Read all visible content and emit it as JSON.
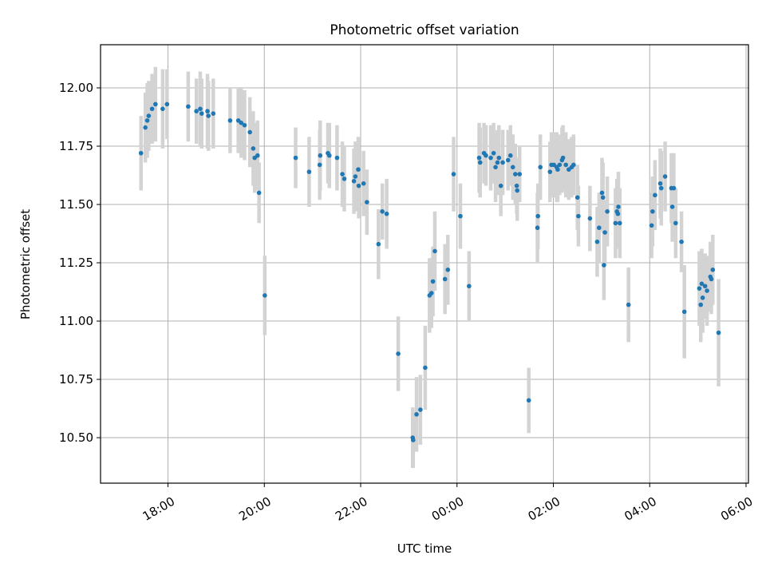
{
  "chart_data": {
    "type": "scatter",
    "title": "Photometric offset variation",
    "xlabel": "UTC time",
    "ylabel": "Photometric offset",
    "x_unit": "hours since 00:00 UTC on the first day (values past 24 are the next day)",
    "xlim": [
      16.6,
      30.05
    ],
    "ylim": [
      10.305,
      12.185
    ],
    "x_ticks": [
      {
        "value": 18,
        "label": "18:00"
      },
      {
        "value": 20,
        "label": "20:00"
      },
      {
        "value": 22,
        "label": "22:00"
      },
      {
        "value": 24,
        "label": "00:00"
      },
      {
        "value": 26,
        "label": "02:00"
      },
      {
        "value": 28,
        "label": "04:00"
      },
      {
        "value": 30,
        "label": "06:00"
      }
    ],
    "y_ticks": [
      {
        "value": 10.5,
        "label": "10.50"
      },
      {
        "value": 10.75,
        "label": "10.75"
      },
      {
        "value": 11.0,
        "label": "11.00"
      },
      {
        "value": 11.25,
        "label": "11.25"
      },
      {
        "value": 11.5,
        "label": "11.50"
      },
      {
        "value": 11.75,
        "label": "11.75"
      },
      {
        "value": 12.0,
        "label": "12.00"
      }
    ],
    "grid": true,
    "marker_color": "#1f77b4",
    "errorbar_color": "#d3d3d3",
    "series": [
      {
        "points": [
          [
            17.44,
            11.72,
            0.16
          ],
          [
            17.53,
            11.83,
            0.15
          ],
          [
            17.57,
            11.86,
            0.16
          ],
          [
            17.6,
            11.88,
            0.15
          ],
          [
            17.67,
            11.91,
            0.15
          ],
          [
            17.74,
            11.93,
            0.16
          ],
          [
            17.89,
            11.91,
            0.17
          ],
          [
            17.98,
            11.93,
            0.15
          ],
          [
            18.42,
            11.92,
            0.15
          ],
          [
            18.59,
            11.9,
            0.14
          ],
          [
            18.67,
            11.91,
            0.16
          ],
          [
            18.7,
            11.89,
            0.15
          ],
          [
            18.82,
            11.9,
            0.16
          ],
          [
            18.84,
            11.88,
            0.15
          ],
          [
            18.94,
            11.89,
            0.15
          ],
          [
            19.29,
            11.86,
            0.14
          ],
          [
            19.46,
            11.86,
            0.14
          ],
          [
            19.52,
            11.85,
            0.15
          ],
          [
            19.59,
            11.84,
            0.15
          ],
          [
            19.7,
            11.81,
            0.15
          ],
          [
            19.77,
            11.74,
            0.16
          ],
          [
            19.8,
            11.7,
            0.15
          ],
          [
            19.86,
            11.71,
            0.15
          ],
          [
            19.89,
            11.55,
            0.13
          ],
          [
            20.01,
            11.11,
            0.17
          ],
          [
            20.65,
            11.7,
            0.13
          ],
          [
            20.93,
            11.64,
            0.15
          ],
          [
            21.15,
            11.67,
            0.15
          ],
          [
            21.16,
            11.71,
            0.15
          ],
          [
            21.32,
            11.72,
            0.13
          ],
          [
            21.35,
            11.71,
            0.14
          ],
          [
            21.51,
            11.7,
            0.14
          ],
          [
            21.62,
            11.63,
            0.14
          ],
          [
            21.66,
            11.61,
            0.14
          ],
          [
            21.86,
            11.6,
            0.14
          ],
          [
            21.89,
            11.62,
            0.15
          ],
          [
            21.95,
            11.65,
            0.14
          ],
          [
            21.96,
            11.58,
            0.14
          ],
          [
            22.06,
            11.59,
            0.14
          ],
          [
            22.13,
            11.51,
            0.14
          ],
          [
            22.37,
            11.33,
            0.15
          ],
          [
            22.45,
            11.47,
            0.12
          ],
          [
            22.54,
            11.46,
            0.15
          ],
          [
            22.78,
            10.86,
            0.16
          ],
          [
            23.08,
            10.5,
            0.13
          ],
          [
            23.09,
            10.49,
            0.12
          ],
          [
            23.16,
            10.6,
            0.16
          ],
          [
            23.24,
            10.62,
            0.15
          ],
          [
            23.34,
            10.8,
            0.18
          ],
          [
            23.43,
            11.11,
            0.16
          ],
          [
            23.47,
            11.12,
            0.15
          ],
          [
            23.5,
            11.17,
            0.15
          ],
          [
            23.54,
            11.3,
            0.17
          ],
          [
            23.75,
            11.18,
            0.15
          ],
          [
            23.81,
            11.22,
            0.15
          ],
          [
            23.93,
            11.63,
            0.16
          ],
          [
            24.07,
            11.45,
            0.14
          ],
          [
            24.25,
            11.15,
            0.15
          ],
          [
            24.46,
            11.7,
            0.15
          ],
          [
            24.48,
            11.68,
            0.15
          ],
          [
            24.56,
            11.72,
            0.13
          ],
          [
            24.6,
            11.71,
            0.13
          ],
          [
            24.7,
            11.7,
            0.14
          ],
          [
            24.76,
            11.72,
            0.13
          ],
          [
            24.8,
            11.66,
            0.15
          ],
          [
            24.84,
            11.68,
            0.14
          ],
          [
            24.87,
            11.7,
            0.14
          ],
          [
            24.91,
            11.58,
            0.13
          ],
          [
            24.95,
            11.68,
            0.14
          ],
          [
            25.06,
            11.69,
            0.13
          ],
          [
            25.11,
            11.71,
            0.13
          ],
          [
            25.16,
            11.66,
            0.14
          ],
          [
            25.21,
            11.63,
            0.13
          ],
          [
            25.24,
            11.58,
            0.12
          ],
          [
            25.25,
            11.56,
            0.13
          ],
          [
            25.3,
            11.63,
            0.12
          ],
          [
            25.49,
            10.66,
            0.14
          ],
          [
            25.67,
            11.4,
            0.15
          ],
          [
            25.68,
            11.45,
            0.14
          ],
          [
            25.73,
            11.66,
            0.14
          ],
          [
            25.93,
            11.64,
            0.13
          ],
          [
            25.96,
            11.67,
            0.14
          ],
          [
            26.01,
            11.67,
            0.14
          ],
          [
            26.07,
            11.66,
            0.15
          ],
          [
            26.09,
            11.65,
            0.14
          ],
          [
            26.13,
            11.67,
            0.13
          ],
          [
            26.18,
            11.69,
            0.14
          ],
          [
            26.2,
            11.7,
            0.14
          ],
          [
            26.26,
            11.67,
            0.14
          ],
          [
            26.32,
            11.65,
            0.13
          ],
          [
            26.38,
            11.66,
            0.13
          ],
          [
            26.42,
            11.67,
            0.13
          ],
          [
            26.5,
            11.53,
            0.14
          ],
          [
            26.52,
            11.45,
            0.13
          ],
          [
            26.76,
            11.44,
            0.14
          ],
          [
            26.91,
            11.34,
            0.15
          ],
          [
            26.95,
            11.4,
            0.15
          ],
          [
            27.01,
            11.55,
            0.15
          ],
          [
            27.03,
            11.53,
            0.15
          ],
          [
            27.05,
            11.24,
            0.15
          ],
          [
            27.07,
            11.38,
            0.14
          ],
          [
            27.12,
            11.47,
            0.15
          ],
          [
            27.29,
            11.42,
            0.15
          ],
          [
            27.32,
            11.47,
            0.14
          ],
          [
            27.34,
            11.46,
            0.15
          ],
          [
            27.35,
            11.49,
            0.15
          ],
          [
            27.38,
            11.42,
            0.15
          ],
          [
            27.56,
            11.07,
            0.16
          ],
          [
            28.04,
            11.41,
            0.14
          ],
          [
            28.06,
            11.47,
            0.15
          ],
          [
            28.11,
            11.54,
            0.15
          ],
          [
            28.22,
            11.59,
            0.15
          ],
          [
            28.24,
            11.57,
            0.16
          ],
          [
            28.32,
            11.62,
            0.15
          ],
          [
            28.45,
            11.57,
            0.15
          ],
          [
            28.47,
            11.49,
            0.15
          ],
          [
            28.5,
            11.57,
            0.15
          ],
          [
            28.54,
            11.42,
            0.15
          ],
          [
            28.66,
            11.34,
            0.13
          ],
          [
            28.72,
            11.04,
            0.2
          ],
          [
            29.03,
            11.14,
            0.16
          ],
          [
            29.06,
            11.07,
            0.16
          ],
          [
            29.08,
            11.16,
            0.15
          ],
          [
            29.1,
            11.1,
            0.15
          ],
          [
            29.15,
            11.15,
            0.14
          ],
          [
            29.19,
            11.13,
            0.15
          ],
          [
            29.26,
            11.19,
            0.15
          ],
          [
            29.28,
            11.18,
            0.15
          ],
          [
            29.31,
            11.22,
            0.15
          ],
          [
            29.43,
            10.95,
            0.23
          ]
        ]
      }
    ]
  }
}
